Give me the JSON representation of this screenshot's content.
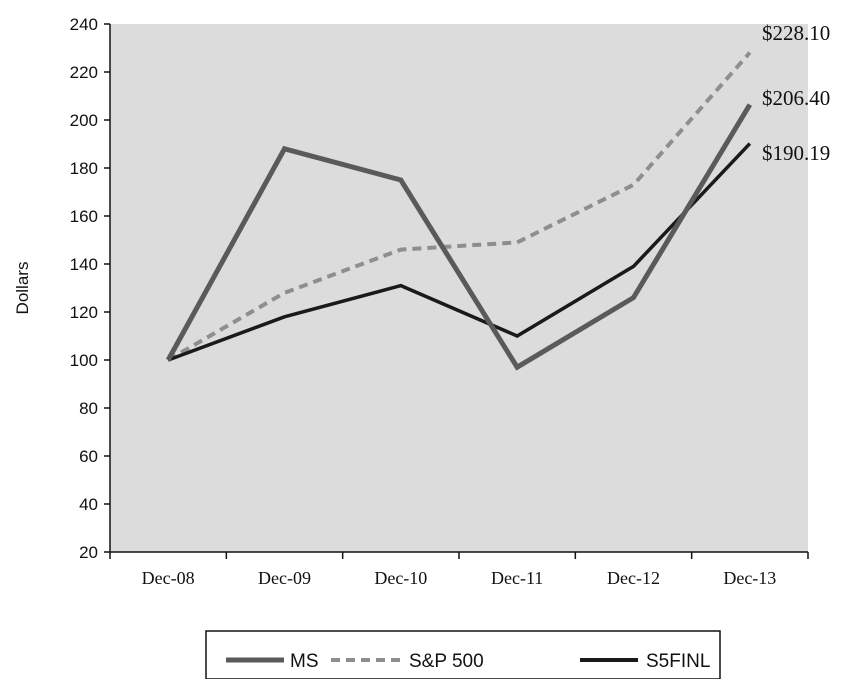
{
  "chart_data": {
    "type": "line",
    "categories": [
      "Dec-08",
      "Dec-09",
      "Dec-10",
      "Dec-11",
      "Dec-12",
      "Dec-13"
    ],
    "ylabel": "Dollars",
    "ylim": [
      20,
      240
    ],
    "yticks": [
      20,
      40,
      60,
      80,
      100,
      120,
      140,
      160,
      180,
      200,
      220,
      240
    ],
    "plot_background": "#dcdcdd",
    "legend_position": "bottom-center",
    "series": [
      {
        "name": "MS",
        "values": [
          100,
          188,
          175,
          97,
          126,
          206.4
        ],
        "color": "#5a5a5a",
        "style": "solid",
        "end_label": "$206.40"
      },
      {
        "name": "S&P 500",
        "values": [
          100,
          128,
          146,
          149,
          173,
          228.1
        ],
        "color": "#8e8e8e",
        "style": "dashed",
        "end_label": "$228.10"
      },
      {
        "name": "S5FINL",
        "values": [
          100,
          118,
          131,
          110,
          139,
          190.19
        ],
        "color": "#1a1a1a",
        "style": "solid",
        "end_label": "$190.19"
      }
    ]
  }
}
